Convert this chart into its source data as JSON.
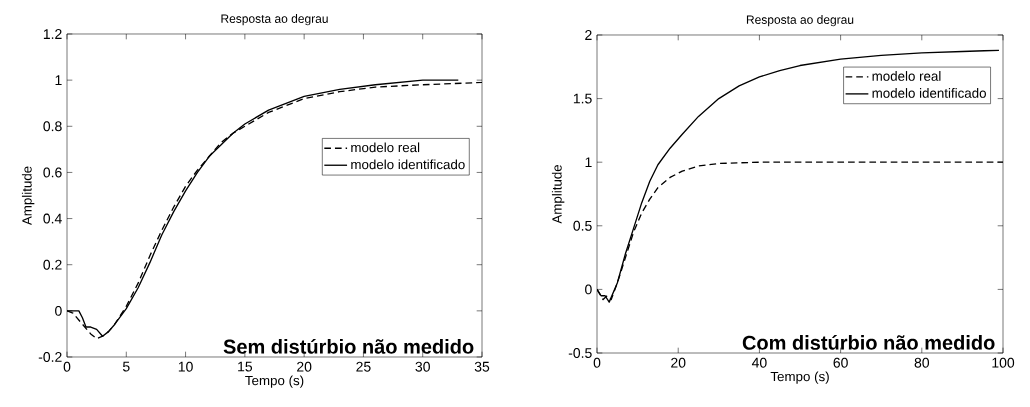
{
  "chart_data": [
    {
      "type": "line",
      "title": "Resposta ao degrau",
      "xlabel": "Tempo (s)",
      "ylabel": "Amplitude",
      "xlim": [
        0,
        35
      ],
      "ylim": [
        -0.2,
        1.2
      ],
      "xticks": [
        0,
        5,
        10,
        15,
        20,
        25,
        30,
        35
      ],
      "yticks": [
        -0.2,
        0,
        0.2,
        0.4,
        0.6,
        0.8,
        1,
        1.2
      ],
      "legend": "right",
      "grid": false,
      "annotations": [
        "Sem distúrbio não medido"
      ],
      "series": [
        {
          "name": "modelo real",
          "color": "#000000",
          "line_style": "dashed",
          "x": [
            0,
            0.5,
            1,
            1.5,
            2,
            2.5,
            3,
            3.5,
            4,
            5,
            6,
            7,
            8,
            9,
            10,
            11,
            12,
            13,
            14,
            15,
            17,
            20,
            23,
            26,
            30,
            35
          ],
          "values": [
            0,
            -0.01,
            -0.04,
            -0.07,
            -0.1,
            -0.12,
            -0.11,
            -0.09,
            -0.06,
            0.02,
            0.12,
            0.24,
            0.35,
            0.45,
            0.54,
            0.61,
            0.67,
            0.73,
            0.77,
            0.8,
            0.86,
            0.92,
            0.95,
            0.97,
            0.98,
            0.99
          ]
        },
        {
          "name": "modelo identificado",
          "color": "#000000",
          "line_style": "solid",
          "x": [
            0,
            1,
            1.3,
            1.6,
            2,
            2.5,
            3,
            3.5,
            4,
            5,
            6,
            7,
            8,
            9,
            10,
            11,
            12,
            13,
            14,
            15,
            17,
            20,
            23,
            26,
            30,
            33
          ],
          "values": [
            0,
            0,
            -0.03,
            -0.07,
            -0.07,
            -0.08,
            -0.11,
            -0.09,
            -0.06,
            0.01,
            0.1,
            0.21,
            0.33,
            0.43,
            0.52,
            0.6,
            0.67,
            0.72,
            0.77,
            0.81,
            0.87,
            0.93,
            0.96,
            0.98,
            1.0,
            1.0
          ]
        }
      ]
    },
    {
      "type": "line",
      "title": "Resposta ao degrau",
      "xlabel": "Tempo (s)",
      "ylabel": "Amplitude",
      "xlim": [
        0,
        100
      ],
      "ylim": [
        -0.5,
        2
      ],
      "xticks": [
        0,
        20,
        40,
        60,
        80,
        100
      ],
      "yticks": [
        -0.5,
        0,
        0.5,
        1,
        1.5,
        2
      ],
      "legend": "top right",
      "grid": false,
      "annotations": [
        "Com distúrbio não medido"
      ],
      "series": [
        {
          "name": "modelo real",
          "color": "#000000",
          "line_style": "dashed",
          "x": [
            0,
            1.5,
            2.5,
            3.5,
            5,
            7,
            9,
            11,
            13,
            15,
            18,
            21,
            25,
            30,
            40,
            100
          ],
          "values": [
            0,
            -0.08,
            -0.05,
            -0.08,
            0.05,
            0.25,
            0.45,
            0.6,
            0.71,
            0.8,
            0.88,
            0.93,
            0.97,
            0.99,
            1.0,
            1.0
          ]
        },
        {
          "name": "modelo identificado",
          "color": "#000000",
          "line_style": "solid",
          "x": [
            0,
            1,
            2,
            3,
            5,
            7,
            9,
            11,
            13,
            15,
            18,
            21,
            25,
            30,
            35,
            40,
            45,
            50,
            60,
            70,
            80,
            90,
            99
          ],
          "values": [
            0,
            -0.05,
            -0.05,
            -0.1,
            0.05,
            0.28,
            0.48,
            0.68,
            0.85,
            0.98,
            1.11,
            1.22,
            1.36,
            1.5,
            1.6,
            1.67,
            1.72,
            1.76,
            1.81,
            1.84,
            1.86,
            1.87,
            1.88
          ]
        }
      ]
    }
  ]
}
